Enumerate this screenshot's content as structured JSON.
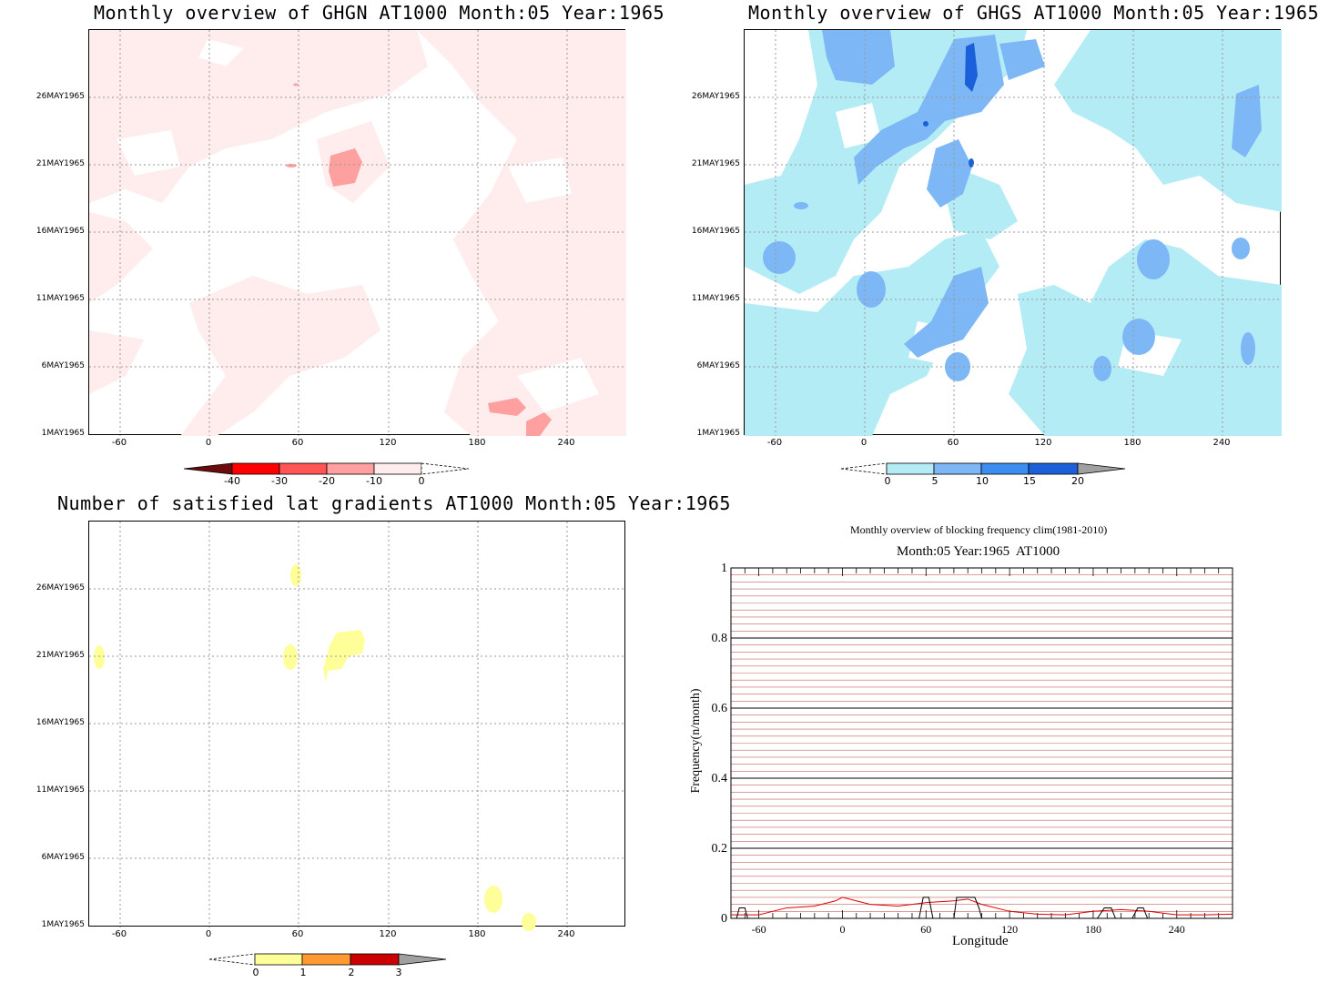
{
  "panels": {
    "ghgn": {
      "title": "Monthly overview of GHGN AT1000 Month:05 Year:1965",
      "colorbar": {
        "labels": [
          "-40",
          "-30",
          "-20",
          "-10",
          "0"
        ],
        "colors": [
          "#6b0b0b",
          "#ff0000",
          "#ff5555",
          "#ff9f9f",
          "#ffecec"
        ]
      }
    },
    "ghgs": {
      "title": "Monthly overview of GHGS AT1000 Month:05 Year:1965",
      "colorbar": {
        "labels": [
          "0",
          "5",
          "10",
          "15",
          "20"
        ],
        "colors": [
          "#b4ecf6",
          "#7db7f5",
          "#3d8df0",
          "#1b60d8",
          "#a0a0a0"
        ]
      }
    },
    "nsat": {
      "title": "Number of satisfied lat gradients AT1000 Month:05 Year:1965",
      "colorbar": {
        "labels": [
          "0",
          "1",
          "2",
          "3"
        ],
        "colors": [
          "#ffff99",
          "#ff9a33",
          "#cc0000",
          "#a0a0a0"
        ]
      }
    },
    "freq": {
      "title": "Monthly overview of blocking frequency clim(1981-2010)",
      "subtitle": "Month:05 Year:1965  AT1000"
    }
  },
  "map_axes": {
    "y_ticks": [
      "26MAY1965",
      "21MAY1965",
      "16MAY1965",
      "11MAY1965",
      "6MAY1965",
      "1MAY1965"
    ],
    "x_ticks": [
      "-60",
      "0",
      "60",
      "120",
      "180",
      "240"
    ]
  },
  "chart_data": {
    "type": "line",
    "title": "Monthly overview of blocking frequency clim(1981-2010)",
    "subtitle": "Month:05 Year:1965  AT1000",
    "xlabel": "Longitude",
    "ylabel": "Frequency(n/month)",
    "x_ticks": [
      "-60",
      "0",
      "60",
      "120",
      "180",
      "240"
    ],
    "y_ticks": [
      "0",
      "0.2",
      "0.4",
      "0.6",
      "0.8",
      "1"
    ],
    "xlim": [
      -80,
      280
    ],
    "ylim": [
      0,
      1
    ],
    "series": [
      {
        "color": "#e00000",
        "x": [
          -80,
          -60,
          -40,
          -20,
          -5,
          0,
          10,
          20,
          40,
          60,
          80,
          90,
          100,
          120,
          140,
          160,
          180,
          200,
          220,
          240,
          260,
          280
        ],
        "y": [
          0.01,
          0.01,
          0.03,
          0.035,
          0.05,
          0.06,
          0.05,
          0.04,
          0.035,
          0.045,
          0.05,
          0.055,
          0.04,
          0.02,
          0.012,
          0.01,
          0.02,
          0.025,
          0.02,
          0.01,
          0.01,
          0.012
        ]
      },
      {
        "color": "#000000",
        "x": [
          -80,
          -76,
          -74,
          -70,
          -68,
          50,
          55,
          58,
          62,
          65,
          75,
          80,
          82,
          95,
          98,
          100,
          180,
          183,
          188,
          193,
          196,
          205,
          208,
          212,
          216,
          219,
          280
        ],
        "y": [
          0,
          0,
          0.03,
          0.03,
          0,
          0,
          0,
          0.06,
          0.06,
          0,
          0,
          0,
          0.06,
          0.06,
          0.03,
          0,
          0,
          0,
          0.03,
          0.03,
          0,
          0,
          0,
          0.03,
          0.03,
          0,
          0
        ]
      }
    ]
  }
}
